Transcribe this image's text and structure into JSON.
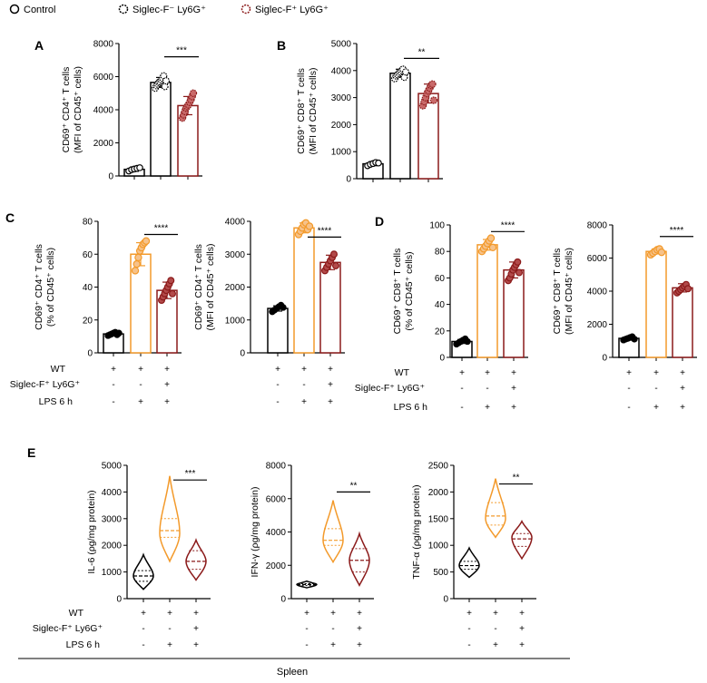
{
  "colors": {
    "control": "#000000",
    "neg": "#000000",
    "pos": "#8b1a1a",
    "lps": "#f39a2b",
    "siglec": "#8b1a1a"
  },
  "legend": {
    "items": [
      {
        "label": "Control",
        "key": "control"
      },
      {
        "label": "Siglec-F⁻ Ly6G⁺",
        "key": "neg"
      },
      {
        "label": "Siglec-F⁺ Ly6G⁺",
        "key": "pos"
      }
    ]
  },
  "rows": {
    "wt": "WT",
    "siglec": "Siglec-F⁺ Ly6G⁺",
    "lps": "LPS 6 h",
    "tissue": "Spleen"
  },
  "chart_data": [
    {
      "panel": "A",
      "type": "bar",
      "ylabel1": "CD69⁺ CD4⁺ T cells",
      "ylabel2": "(MFI of CD45⁺ cells)",
      "ylim": [
        0,
        8000
      ],
      "yticks": [
        0,
        2000,
        4000,
        6000,
        8000
      ],
      "series": [
        {
          "name": "Control",
          "key": "control",
          "mean": 400,
          "sd": 120,
          "points": [
            300,
            380,
            420,
            460,
            500
          ]
        },
        {
          "name": "Siglec-F⁻ Ly6G⁺",
          "key": "neg",
          "mean": 5650,
          "sd": 300,
          "points": [
            5300,
            5450,
            5550,
            5650,
            5700,
            5800,
            5900,
            6050,
            5400,
            5750
          ]
        },
        {
          "name": "Siglec-F⁺ Ly6G⁺",
          "key": "pos",
          "mean": 4250,
          "sd": 550,
          "points": [
            3500,
            3700,
            3900,
            4100,
            4200,
            4300,
            4450,
            4600,
            4800,
            5000
          ]
        }
      ],
      "significance": [
        {
          "from": 1,
          "to": 2,
          "label": "***",
          "y": 7200
        }
      ]
    },
    {
      "panel": "B",
      "type": "bar",
      "ylabel1": "CD69⁺ CD8⁺ T cells",
      "ylabel2": "(MFI of CD45⁺ cells)",
      "ylim": [
        0,
        5000
      ],
      "yticks": [
        0,
        1000,
        2000,
        3000,
        4000,
        5000
      ],
      "series": [
        {
          "name": "Control",
          "key": "control",
          "mean": 550,
          "sd": 70,
          "points": [
            480,
            530,
            560,
            600,
            580
          ]
        },
        {
          "name": "Siglec-F⁻ Ly6G⁺",
          "key": "neg",
          "mean": 3900,
          "sd": 150,
          "points": [
            3700,
            3800,
            3850,
            3900,
            3950,
            4000,
            4050,
            3750,
            3950
          ]
        },
        {
          "name": "Siglec-F⁺ Ly6G⁺",
          "key": "pos",
          "mean": 3150,
          "sd": 350,
          "points": [
            2700,
            2850,
            3000,
            3150,
            3250,
            3350,
            3450,
            3500,
            2900
          ]
        }
      ],
      "significance": [
        {
          "from": 1,
          "to": 2,
          "label": "**",
          "y": 4450
        }
      ]
    },
    {
      "panel": "C",
      "type": "bar",
      "ylabel1": "CD69⁺ CD4⁺ T cells",
      "ylabel2": "(% of CD45⁺ cells)",
      "ylim": [
        0,
        80
      ],
      "yticks": [
        0,
        20,
        40,
        60,
        80
      ],
      "series": [
        {
          "name": "WT",
          "key": "control",
          "mean": 11.5,
          "sd": 1,
          "points": [
            10.5,
            11,
            11.5,
            12,
            12.5,
            11,
            12
          ]
        },
        {
          "name": "WT + LPS 6 h",
          "key": "lps",
          "mean": 60,
          "sd": 7,
          "points": [
            50,
            54,
            58,
            62,
            64,
            66,
            67,
            68
          ]
        },
        {
          "name": "WT + Siglec-F⁺ Ly6G⁺ + LPS 6 h",
          "key": "siglec",
          "mean": 38,
          "sd": 5,
          "points": [
            32,
            34,
            36,
            38,
            40,
            42,
            44,
            36
          ]
        }
      ],
      "significance": [
        {
          "from": 1,
          "to": 2,
          "label": "****",
          "y": 72
        }
      ]
    },
    {
      "panel": "C2",
      "type": "bar",
      "ylabel1": "CD69⁺ CD4⁺ T cells",
      "ylabel2": "(MFI of CD45⁺ cells)",
      "ylim": [
        0,
        4000
      ],
      "yticks": [
        0,
        1000,
        2000,
        3000,
        4000
      ],
      "series": [
        {
          "name": "WT",
          "key": "control",
          "mean": 1350,
          "sd": 80,
          "points": [
            1250,
            1300,
            1350,
            1400,
            1450,
            1380
          ]
        },
        {
          "name": "WT + LPS 6 h",
          "key": "lps",
          "mean": 3800,
          "sd": 150,
          "points": [
            3600,
            3700,
            3800,
            3900,
            3950,
            3750,
            3850
          ]
        },
        {
          "name": "WT + Siglec-F⁺ Ly6G⁺ + LPS 6 h",
          "key": "siglec",
          "mean": 2750,
          "sd": 220,
          "points": [
            2500,
            2600,
            2700,
            2800,
            2900,
            3000,
            2650
          ]
        }
      ],
      "significance": [
        {
          "from": 1,
          "to": 2,
          "label": "****",
          "y": 3520
        }
      ]
    },
    {
      "panel": "D",
      "type": "bar",
      "ylabel1": "CD69⁺ CD8⁺ T cells",
      "ylabel2": "(% of CD45⁺ cells)",
      "ylim": [
        0,
        100
      ],
      "yticks": [
        0,
        20,
        40,
        60,
        80,
        100
      ],
      "series": [
        {
          "name": "WT",
          "key": "control",
          "mean": 12,
          "sd": 1.5,
          "points": [
            10,
            11,
            12,
            13,
            14,
            12
          ]
        },
        {
          "name": "WT + LPS 6 h",
          "key": "lps",
          "mean": 85,
          "sd": 4,
          "points": [
            80,
            82,
            84,
            86,
            88,
            90,
            83
          ]
        },
        {
          "name": "WT + Siglec-F⁺ Ly6G⁺ + LPS 6 h",
          "key": "siglec",
          "mean": 66,
          "sd": 6,
          "points": [
            58,
            60,
            63,
            66,
            68,
            70,
            72,
            64
          ]
        }
      ],
      "significance": [
        {
          "from": 1,
          "to": 2,
          "label": "****",
          "y": 95
        }
      ]
    },
    {
      "panel": "D2",
      "type": "bar",
      "ylabel1": "CD69⁺ CD8⁺ T cells",
      "ylabel2": "(MFI of CD45⁺ cells)",
      "ylim": [
        0,
        8000
      ],
      "yticks": [
        0,
        2000,
        4000,
        6000,
        8000
      ],
      "series": [
        {
          "name": "WT",
          "key": "control",
          "mean": 1150,
          "sd": 100,
          "points": [
            1050,
            1100,
            1150,
            1200,
            1250,
            1100
          ]
        },
        {
          "name": "WT + LPS 6 h",
          "key": "lps",
          "mean": 6400,
          "sd": 150,
          "points": [
            6200,
            6300,
            6400,
            6500,
            6550,
            6350
          ]
        },
        {
          "name": "WT + Siglec-F⁺ Ly6G⁺ + LPS 6 h",
          "key": "siglec",
          "mean": 4200,
          "sd": 250,
          "points": [
            3900,
            4000,
            4100,
            4200,
            4300,
            4400,
            4150
          ]
        }
      ],
      "significance": [
        {
          "from": 1,
          "to": 2,
          "label": "****",
          "y": 7300
        }
      ]
    },
    {
      "panel": "E",
      "type": "violin",
      "ylabel": "IL-6 (ρg/mg protein)",
      "ylim": [
        0,
        5000
      ],
      "yticks": [
        0,
        1000,
        2000,
        3000,
        4000,
        5000
      ],
      "series": [
        {
          "name": "WT",
          "key": "control",
          "min": 350,
          "max": 1650,
          "median": 850,
          "q1": 650,
          "q3": 1050,
          "mode": 850
        },
        {
          "name": "WT + LPS 6 h",
          "key": "lps",
          "min": 1400,
          "max": 4600,
          "median": 2550,
          "q1": 2300,
          "q3": 3000,
          "mode": 2450
        },
        {
          "name": "WT + Siglec-F⁺ Ly6G⁺ + LPS 6 h",
          "key": "siglec",
          "min": 700,
          "max": 2200,
          "median": 1400,
          "q1": 1100,
          "q3": 1800,
          "mode": 1400
        }
      ],
      "significance": [
        {
          "from": 1,
          "to": 2,
          "label": "***",
          "y": 4450
        }
      ]
    },
    {
      "panel": "E2",
      "type": "violin",
      "ylabel": "IFN-γ (ρg/mg protein)",
      "ylim": [
        0,
        8000
      ],
      "yticks": [
        0,
        2000,
        4000,
        6000,
        8000
      ],
      "series": [
        {
          "name": "WT",
          "key": "control",
          "min": 650,
          "max": 1050,
          "median": 850,
          "q1": 780,
          "q3": 900,
          "mode": 850
        },
        {
          "name": "WT + LPS 6 h",
          "key": "lps",
          "min": 2200,
          "max": 5900,
          "median": 3500,
          "q1": 3200,
          "q3": 4200,
          "mode": 3500
        },
        {
          "name": "WT + Siglec-F⁺ Ly6G⁺ + LPS 6 h",
          "key": "siglec",
          "min": 800,
          "max": 3900,
          "median": 2300,
          "q1": 1600,
          "q3": 3000,
          "mode": 2300
        }
      ],
      "significance": [
        {
          "from": 1,
          "to": 2,
          "label": "**",
          "y": 6400
        }
      ]
    },
    {
      "panel": "E3",
      "type": "violin",
      "ylabel": "TNF-α (ρg/mg protein)",
      "ylim": [
        0,
        2500
      ],
      "yticks": [
        0,
        500,
        1000,
        1500,
        2000,
        2500
      ],
      "series": [
        {
          "name": "WT",
          "key": "control",
          "min": 400,
          "max": 950,
          "median": 620,
          "q1": 550,
          "q3": 700,
          "mode": 620
        },
        {
          "name": "WT + LPS 6 h",
          "key": "lps",
          "min": 1150,
          "max": 2250,
          "median": 1550,
          "q1": 1380,
          "q3": 1800,
          "mode": 1500
        },
        {
          "name": "WT + Siglec-F⁺ Ly6G⁺ + LPS 6 h",
          "key": "siglec",
          "min": 750,
          "max": 1450,
          "median": 1120,
          "q1": 980,
          "q3": 1220,
          "mode": 1150
        }
      ],
      "significance": [
        {
          "from": 1,
          "to": 2,
          "label": "**",
          "y": 2150
        }
      ]
    }
  ],
  "condition_rows": {
    "wt": [
      "+",
      "+",
      "+"
    ],
    "siglec": [
      "-",
      "-",
      "+"
    ],
    "lps": [
      "-",
      "+",
      "+"
    ]
  },
  "panel_letters": [
    "A",
    "B",
    "C",
    "D",
    "E"
  ]
}
